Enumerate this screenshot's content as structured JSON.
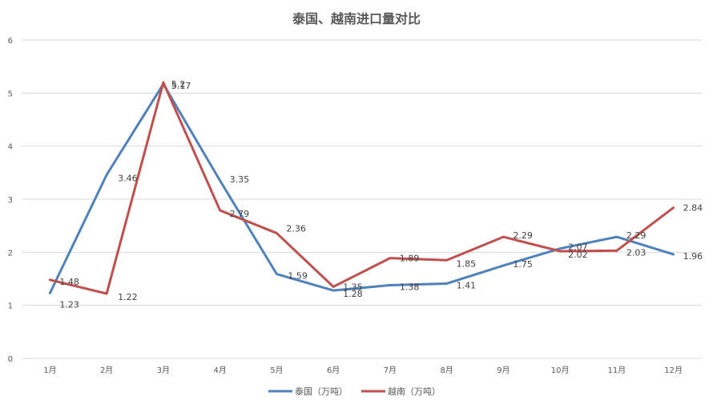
{
  "chart_data": {
    "type": "line",
    "title": "泰国、越南进口量对比",
    "xlabel": "",
    "ylabel": "",
    "categories": [
      "1月",
      "2月",
      "3月",
      "4月",
      "5月",
      "6月",
      "7月",
      "8月",
      "9月",
      "10月",
      "11月",
      "12月"
    ],
    "ylim": [
      0,
      6
    ],
    "yticks": [
      0,
      1,
      2,
      3,
      4,
      5,
      6
    ],
    "grid": true,
    "legend_position": "bottom",
    "series": [
      {
        "name": "泰国（万吨）",
        "color": "#4F81BD",
        "values": [
          1.23,
          3.46,
          5.17,
          3.35,
          1.59,
          1.28,
          1.38,
          1.41,
          1.75,
          2.07,
          2.29,
          1.96
        ]
      },
      {
        "name": "越南（万吨）",
        "color": "#C0504D",
        "values": [
          1.48,
          1.22,
          5.2,
          2.79,
          2.36,
          1.35,
          1.89,
          1.85,
          2.29,
          2.02,
          2.03,
          2.84
        ]
      }
    ]
  }
}
